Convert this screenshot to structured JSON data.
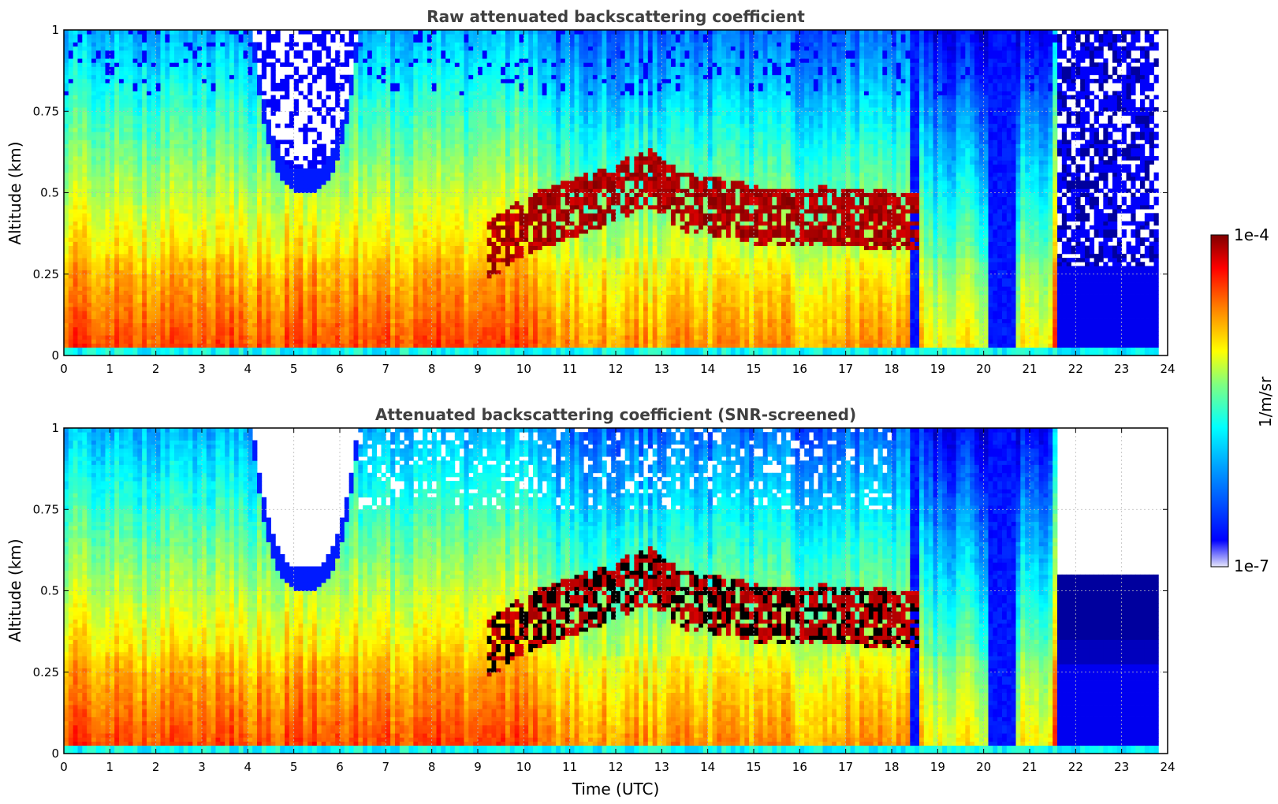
{
  "chart_data": [
    {
      "type": "heatmap",
      "title": "Raw attenuated backscattering coefficient",
      "xlabel": "",
      "ylabel": "Altitude (km)",
      "xlim": [
        0,
        24
      ],
      "ylim": [
        0,
        1
      ],
      "xticks": [
        "0",
        "1",
        "2",
        "3",
        "4",
        "5",
        "6",
        "7",
        "8",
        "9",
        "10",
        "11",
        "12",
        "13",
        "14",
        "15",
        "16",
        "17",
        "18",
        "19",
        "20",
        "21",
        "22",
        "23",
        "24"
      ],
      "yticks": [
        "0",
        "0.25",
        "0.5",
        "0.75",
        "1"
      ],
      "grid": true,
      "data_end_time": 23.75,
      "surface_layer_top_km": 0.03,
      "boundary_layer": {
        "time": [
          0,
          3,
          5,
          6,
          9,
          10.5,
          13.5,
          16,
          18.5,
          21.5
        ],
        "top_km": [
          0.3,
          0.3,
          0.3,
          0.3,
          0.3,
          0.3,
          0.3,
          0.3,
          0.25,
          0.25
        ]
      },
      "aerosol_layer": {
        "time": [
          9.2,
          10,
          11,
          12,
          12.7,
          13.5,
          14.5,
          15.5,
          16.5,
          17.5,
          18.6
        ],
        "center_km": [
          0.32,
          0.4,
          0.45,
          0.5,
          0.55,
          0.47,
          0.45,
          0.42,
          0.43,
          0.42,
          0.41
        ]
      },
      "clear_region": {
        "time_start": 4.1,
        "time_end": 6.4,
        "bottom_km": 0.57
      },
      "noise_region": {
        "time_start": 21.55,
        "time_end": 23.75,
        "bottom_km": 0.27
      }
    },
    {
      "type": "heatmap",
      "title": "Attenuated backscattering coefficient (SNR-screened)",
      "xlabel": "Time (UTC)",
      "ylabel": "Altitude (km)",
      "xlim": [
        0,
        24
      ],
      "ylim": [
        0,
        1
      ],
      "xticks": [
        "0",
        "1",
        "2",
        "3",
        "4",
        "5",
        "6",
        "7",
        "8",
        "9",
        "10",
        "11",
        "12",
        "13",
        "14",
        "15",
        "16",
        "17",
        "18",
        "19",
        "20",
        "21",
        "22",
        "23",
        "24"
      ],
      "yticks": [
        "0",
        "0.25",
        "0.5",
        "0.75",
        "1"
      ],
      "grid": true,
      "data_end_time": 23.75,
      "clear_region": {
        "time_start": 4.1,
        "time_end": 6.4,
        "bottom_km": 0.57
      },
      "screened_region": {
        "time_start": 21.55,
        "time_end": 23.75,
        "bottom_km": 0.55
      }
    }
  ],
  "colorbar": {
    "label": "1/m/sr",
    "max_label": "1e-4",
    "min_label": "1e-7",
    "min_value": 1e-07,
    "max_value": 0.0001,
    "colormap": "jet",
    "colors": [
      "#e6e6fa",
      "#0000ff",
      "#00a0ff",
      "#00ffff",
      "#80ff80",
      "#ffff00",
      "#ff8000",
      "#ff0000",
      "#800000"
    ]
  }
}
